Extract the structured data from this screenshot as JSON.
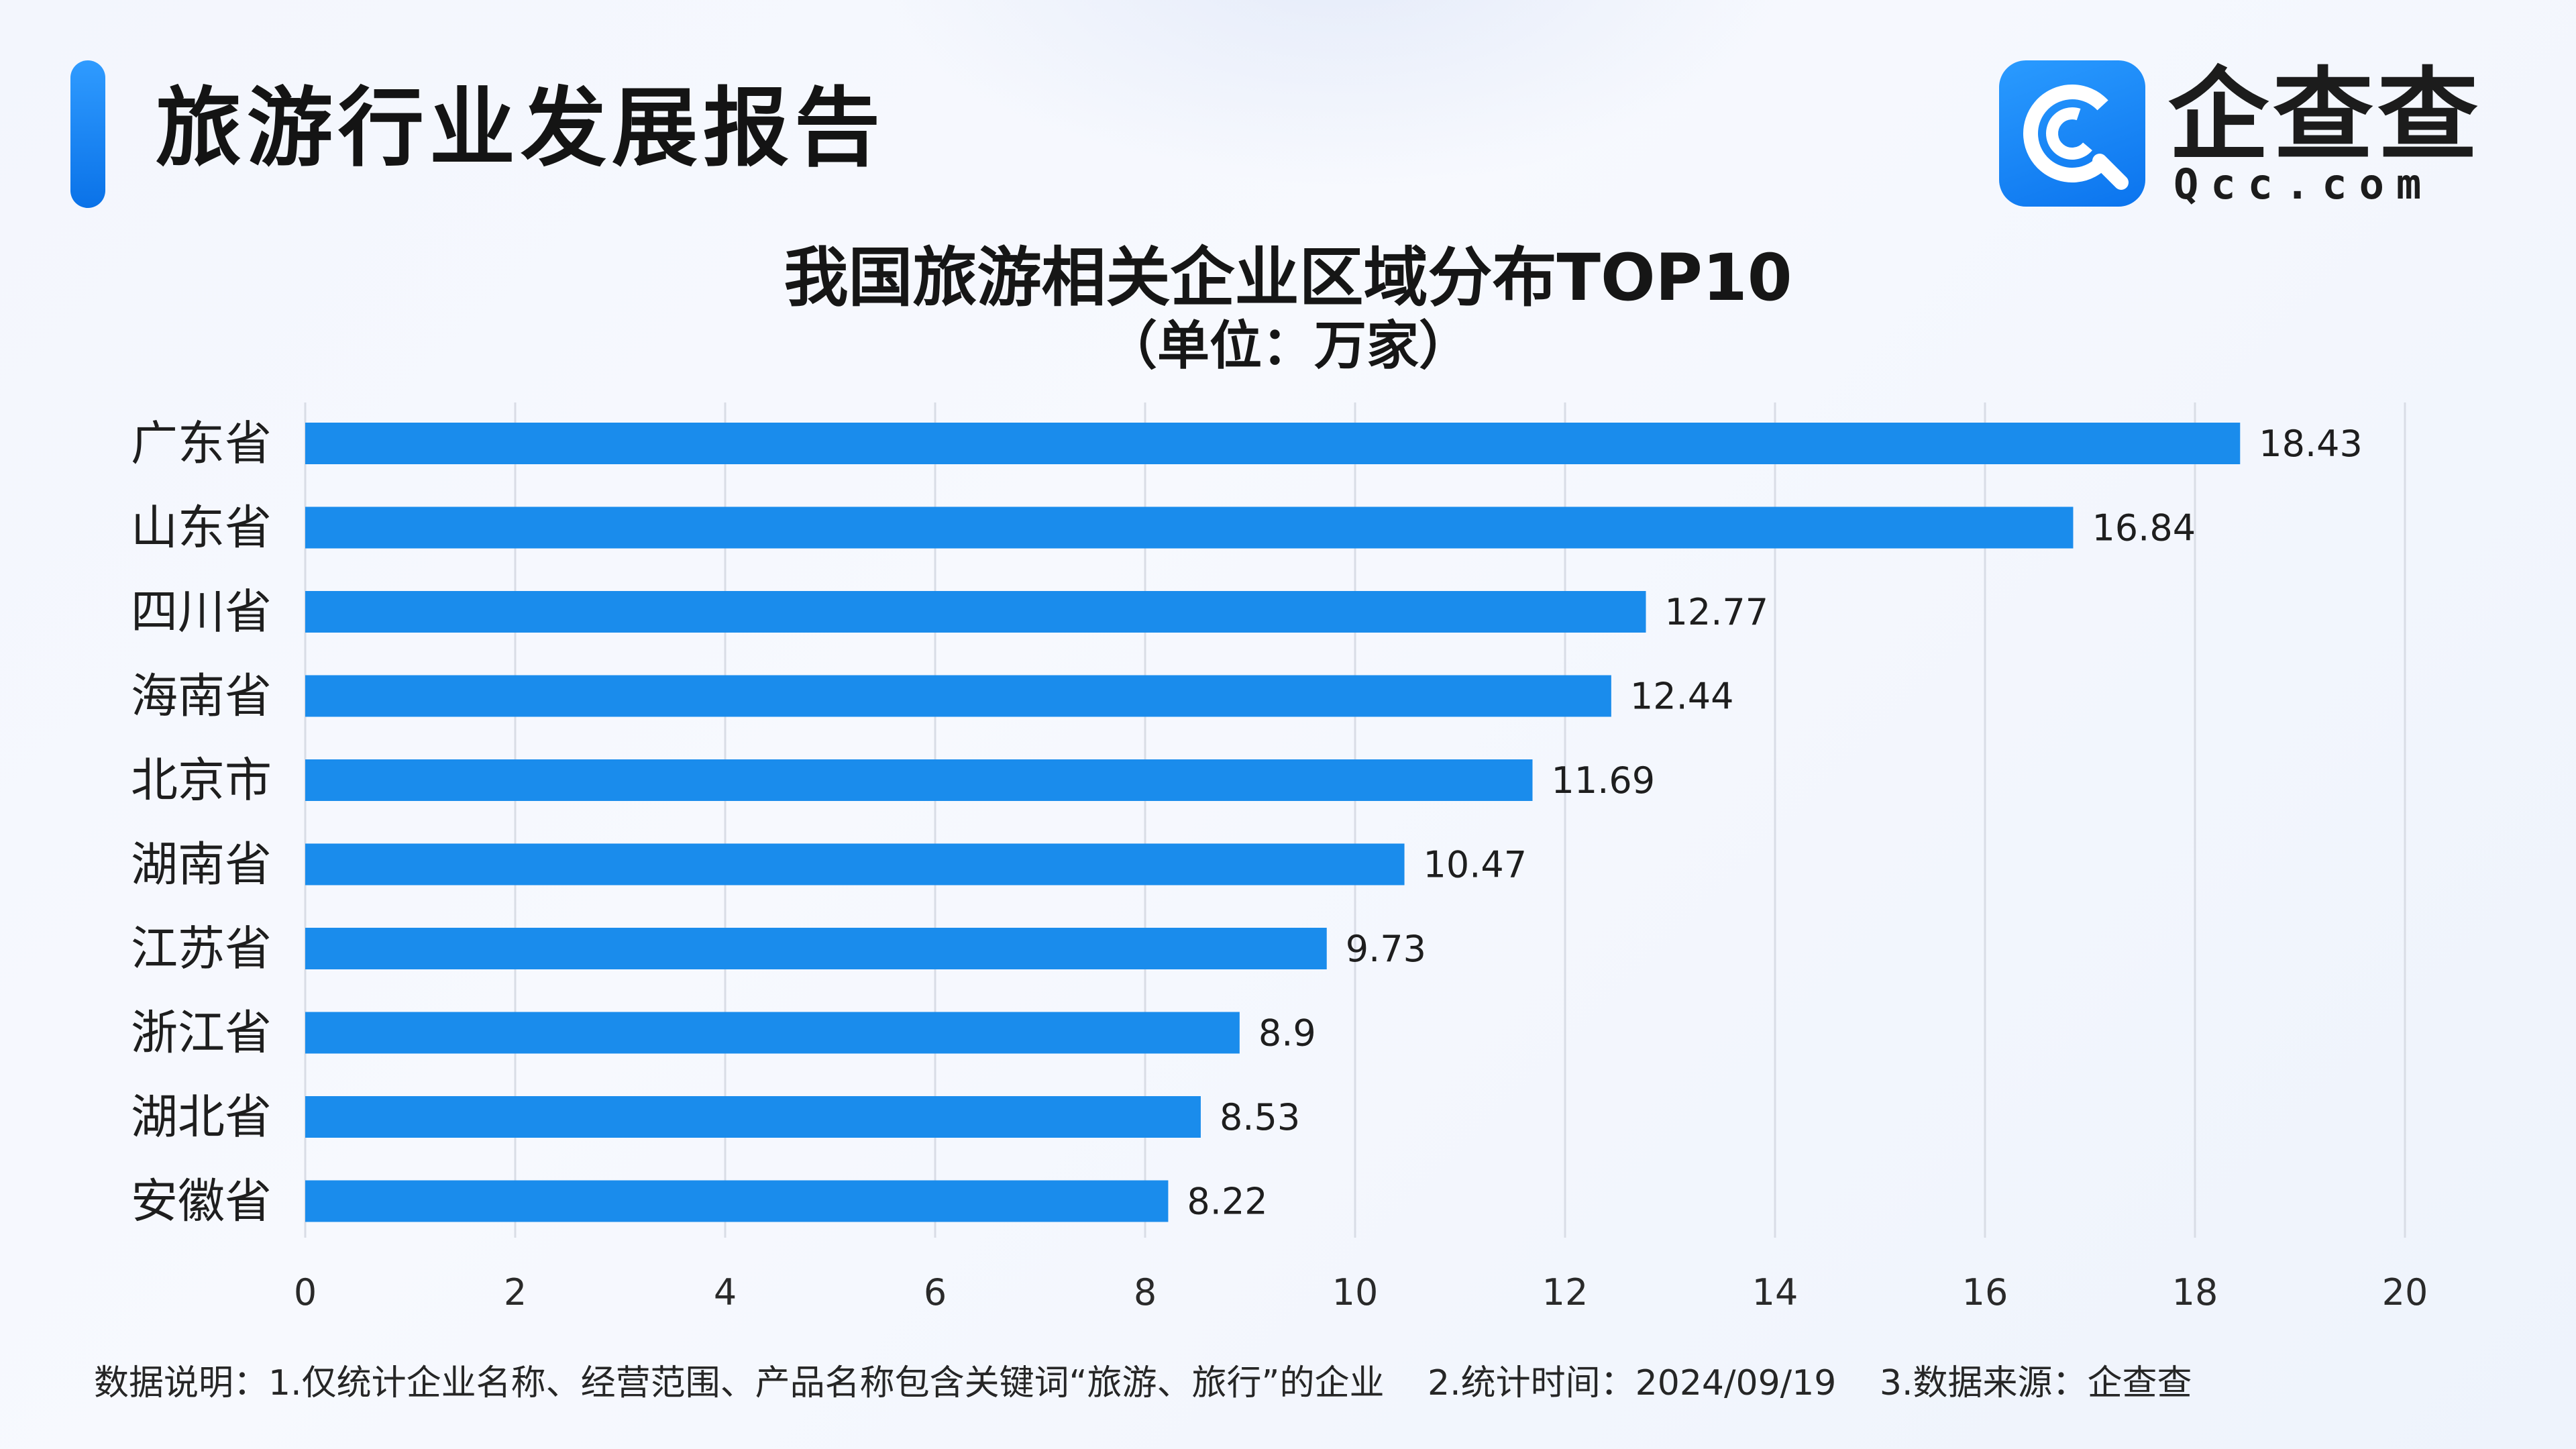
{
  "header": {
    "title": "旅游行业发展报告",
    "logo_text": "企查查",
    "logo_sub": "Qcc.com"
  },
  "chart_data": {
    "type": "bar",
    "orientation": "horizontal",
    "title": "我国旅游相关企业区域分布TOP10",
    "subtitle": "（单位：万家）",
    "categories": [
      "广东省",
      "山东省",
      "四川省",
      "海南省",
      "北京市",
      "湖南省",
      "江苏省",
      "浙江省",
      "湖北省",
      "安徽省"
    ],
    "values": [
      18.43,
      16.84,
      12.77,
      12.44,
      11.69,
      10.47,
      9.73,
      8.9,
      8.53,
      8.22
    ],
    "value_labels": [
      "18.43",
      "16.84",
      "12.77",
      "12.44",
      "11.69",
      "10.47",
      "9.73",
      "8.9",
      "8.53",
      "8.22"
    ],
    "x_ticks": [
      0,
      2,
      4,
      6,
      8,
      10,
      12,
      14,
      16,
      18,
      20
    ],
    "xlim": [
      0,
      20
    ],
    "grid": "vertical",
    "legend": "none",
    "bar_color": "#1a8cec"
  },
  "footnote": {
    "part1": "数据说明：1.仅统计企业名称、经营范围、产品名称包含关键词“旅游、旅行”的企业",
    "part2": "2.统计时间：2024/09/19",
    "part3": "3.数据来源：企查查"
  },
  "colors": {
    "accent": "#1a8cec",
    "grid": "#d9dde6",
    "text": "#1e1e1e"
  }
}
